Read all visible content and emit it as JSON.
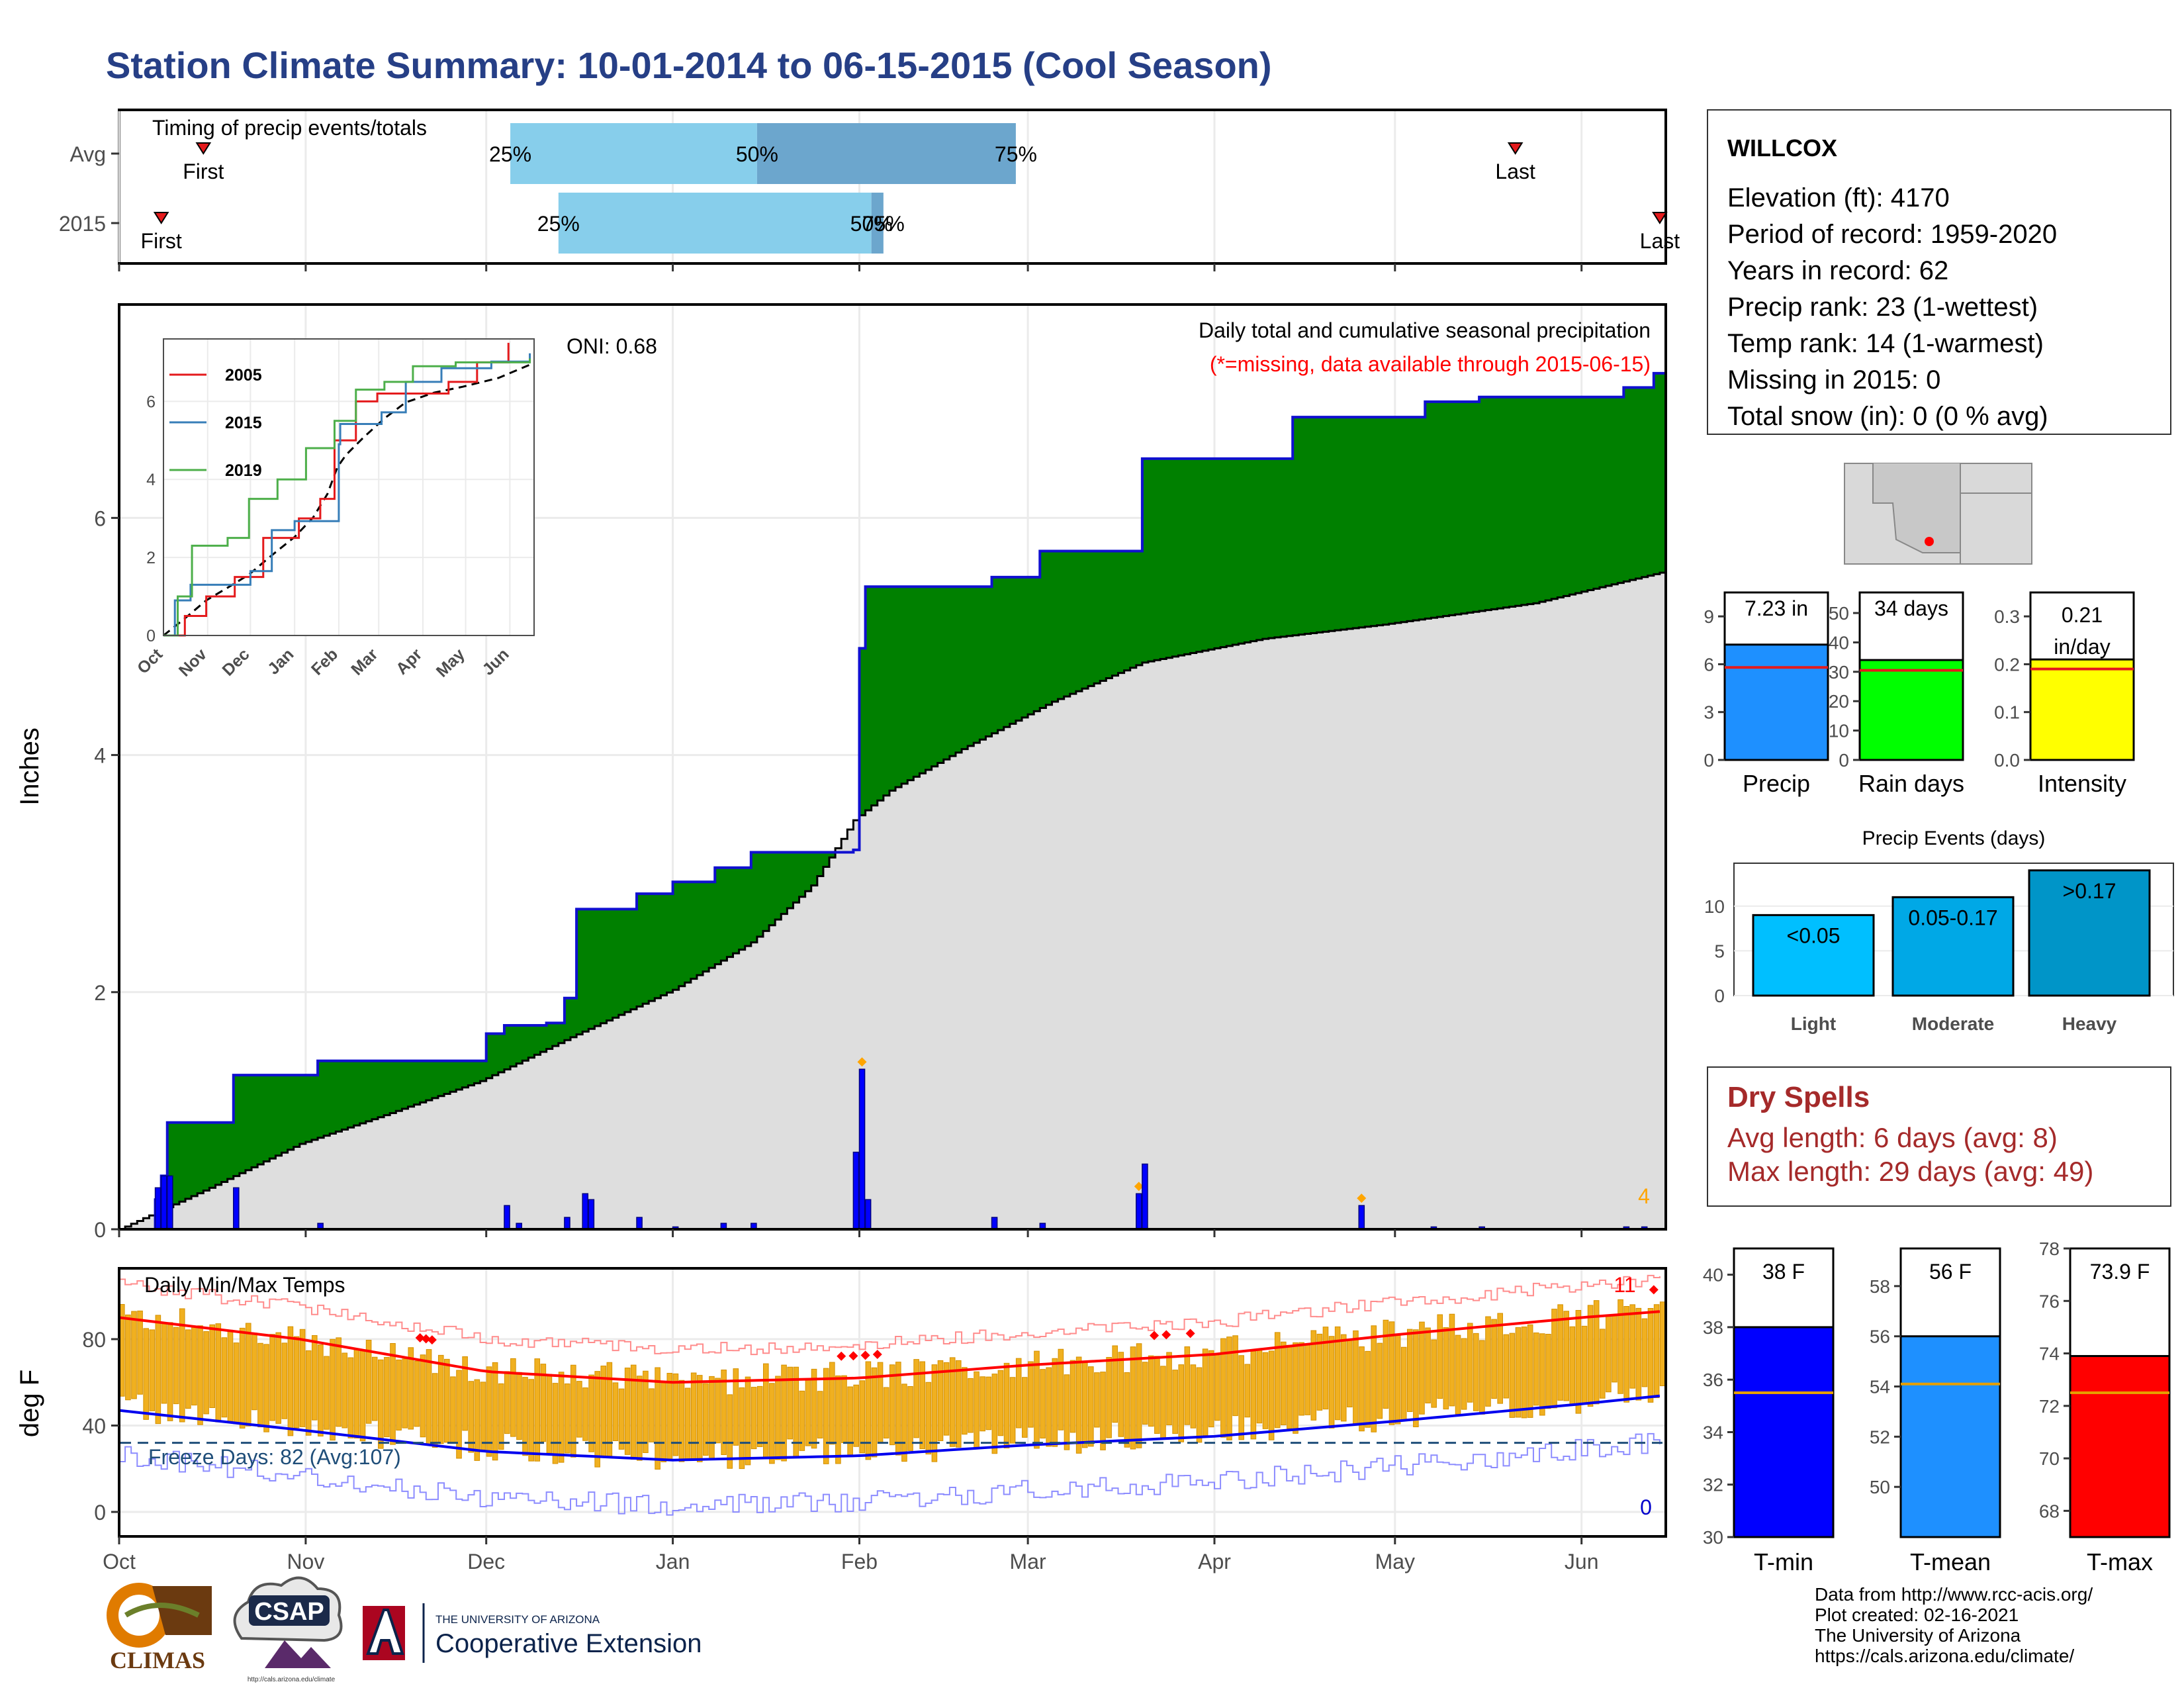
{
  "title": "Station Climate Summary: 10-01-2014 to 06-15-2015 (Cool Season)",
  "timing_panel": {
    "title": "Timing of precip events/totals",
    "rows": [
      {
        "label": "Avg",
        "first_label": "First",
        "last_label": "Last",
        "first_day": 14,
        "last_day": 232,
        "p25": 65,
        "p50": 106,
        "p75": 149,
        "pct_labels": [
          "25%",
          "50%",
          "75%"
        ]
      },
      {
        "label": "2015",
        "first_label": "First",
        "last_label": "Last",
        "first_day": 7,
        "last_day": 256,
        "p25": 73,
        "p50": 125,
        "p75": 127,
        "pct_labels": [
          "25%",
          "50%",
          "75%"
        ]
      }
    ]
  },
  "precip_panel": {
    "ylabel": "Inches",
    "note": "Daily total and cumulative seasonal precipitation",
    "missing_note": "(*=missing, data available through 2015-06-15)",
    "oni": "ONI: 0.68",
    "extreme_count": "4",
    "yticks": [
      "0",
      "2",
      "4",
      "6"
    ],
    "ylim": [
      0,
      7.8
    ]
  },
  "inset": {
    "legend": [
      "2005",
      "2015",
      "2019"
    ],
    "colors": [
      "#e41a1c",
      "#377eb8",
      "#4daf4a"
    ],
    "yticks": [
      "0",
      "2",
      "4",
      "6"
    ],
    "xticks": [
      "Oct",
      "Nov",
      "Dec",
      "Jan",
      "Feb",
      "Mar",
      "Apr",
      "May",
      "Jun"
    ]
  },
  "temp_panel": {
    "title": "Daily Min/Max Temps",
    "ylabel": "deg F",
    "freeze_text": "Freeze Days: 82 (Avg:107)",
    "hot_count": "11",
    "cold_count": "0",
    "yticks": [
      "0",
      "40",
      "80"
    ],
    "xticks": [
      "Oct",
      "Nov",
      "Dec",
      "Jan",
      "Feb",
      "Mar",
      "Apr",
      "May",
      "Jun"
    ]
  },
  "station": {
    "name": "WILLCOX",
    "lines": [
      "Elevation (ft): 4170",
      "Period of record: 1959-2020",
      "Years in record: 62",
      "Precip rank: 23 (1-wettest)",
      "Temp rank: 14 (1-warmest)",
      "Missing in 2015: 0",
      "Total snow (in): 0 (0 % avg)"
    ]
  },
  "summary_bars": [
    {
      "name": "Precip",
      "value_label": "7.23 in",
      "value": 7.23,
      "avg": 5.8,
      "max": 10.5,
      "ticks": [
        "0",
        "3",
        "6",
        "9"
      ],
      "tick_values": [
        0,
        3,
        6,
        9
      ],
      "color": "#1e90ff"
    },
    {
      "name": "Rain days",
      "value_label": "34 days",
      "value": 34,
      "avg": 30.5,
      "max": 57,
      "ticks": [
        "0",
        "10",
        "20",
        "30",
        "40",
        "50"
      ],
      "tick_values": [
        0,
        10,
        20,
        30,
        40,
        50
      ],
      "color": "#00ff00"
    },
    {
      "name": "Intensity",
      "value_label": "0.21 in/day",
      "value": 0.21,
      "avg": 0.19,
      "max": 0.35,
      "ticks": [
        "0.0",
        "0.1",
        "0.2",
        "0.3"
      ],
      "tick_values": [
        0,
        0.1,
        0.2,
        0.3
      ],
      "color": "#ffff00"
    }
  ],
  "events": {
    "title": "Precip Events (days)",
    "categories": [
      "Light",
      "Moderate",
      "Heavy"
    ],
    "range_labels": [
      "<0.05",
      "0.05-0.17",
      ">0.17"
    ],
    "values": [
      9,
      11,
      14
    ],
    "ticks": [
      "0",
      "5",
      "10"
    ],
    "colors": [
      "#00bfff",
      "#00a8e6",
      "#0095c8"
    ]
  },
  "dry_spells": {
    "title": "Dry Spells",
    "avg_line": "Avg length: 6 days (avg: 8)",
    "max_line": "Max length: 29 days (avg: 49)"
  },
  "temp_bars": [
    {
      "name": "T-min",
      "value_label": "38 F",
      "value": 38,
      "avg": 35.5,
      "min": 30,
      "max": 41,
      "ticks": [
        "30",
        "32",
        "34",
        "36",
        "38",
        "40"
      ],
      "tick_values": [
        30,
        32,
        34,
        36,
        38,
        40
      ],
      "color": "#0000ff"
    },
    {
      "name": "T-mean",
      "value_label": "56 F",
      "value": 56,
      "avg": 54.1,
      "min": 48,
      "max": 59.5,
      "ticks": [
        "50",
        "52",
        "54",
        "56",
        "58"
      ],
      "tick_values": [
        50,
        52,
        54,
        56,
        58
      ],
      "color": "#1e90ff"
    },
    {
      "name": "T-max",
      "value_label": "73.9 F",
      "value": 73.9,
      "avg": 72.5,
      "min": 67,
      "max": 78,
      "ticks": [
        "68",
        "70",
        "72",
        "74",
        "76",
        "78"
      ],
      "tick_values": [
        68,
        70,
        72,
        74,
        76,
        78
      ],
      "color": "#ff0000"
    }
  ],
  "footer": [
    "Data from http://www.rcc-acis.org/",
    "Plot created: 02-16-2021",
    "The University of Arizona",
    "https://cals.arizona.edu/climate/"
  ],
  "logos": {
    "climas": "CLIMAS",
    "csap": "CSAP",
    "csap_url": "http://cals.arizona.edu/climate",
    "ua_top": "THE UNIVERSITY OF ARIZONA",
    "ua_bottom": "Cooperative Extension"
  },
  "chart_data": {
    "type": "area",
    "x_axis": "day of season (0 = Oct 1, 2014)",
    "month_labels": [
      "Oct",
      "Nov",
      "Dec",
      "Jan",
      "Feb",
      "Mar",
      "Apr",
      "May",
      "Jun"
    ],
    "month_starts": [
      0,
      31,
      61,
      92,
      123,
      151,
      182,
      212,
      243
    ],
    "season_end_day": 257,
    "cumulative_2015_steps": [
      [
        0,
        0
      ],
      [
        6,
        0.25
      ],
      [
        7,
        0.45
      ],
      [
        8,
        0.9
      ],
      [
        19,
        1.3
      ],
      [
        33,
        1.42
      ],
      [
        59,
        1.42
      ],
      [
        61,
        1.65
      ],
      [
        64,
        1.72
      ],
      [
        71,
        1.74
      ],
      [
        74,
        1.95
      ],
      [
        76,
        2.7
      ],
      [
        86,
        2.83
      ],
      [
        92,
        2.93
      ],
      [
        99,
        3.05
      ],
      [
        105,
        3.18
      ],
      [
        122,
        3.2
      ],
      [
        123,
        4.9
      ],
      [
        124,
        5.42
      ],
      [
        145,
        5.5
      ],
      [
        153,
        5.72
      ],
      [
        170,
        6.5
      ],
      [
        195,
        6.85
      ],
      [
        217,
        6.98
      ],
      [
        226,
        7.02
      ],
      [
        250,
        7.1
      ],
      [
        255,
        7.22
      ],
      [
        257,
        7.23
      ]
    ],
    "cumulative_avg": [
      [
        0,
        0
      ],
      [
        15,
        0.35
      ],
      [
        30,
        0.72
      ],
      [
        45,
        0.98
      ],
      [
        60,
        1.25
      ],
      [
        75,
        1.62
      ],
      [
        92,
        2.02
      ],
      [
        105,
        2.42
      ],
      [
        115,
        2.9
      ],
      [
        122,
        3.45
      ],
      [
        128,
        3.7
      ],
      [
        140,
        4.05
      ],
      [
        155,
        4.45
      ],
      [
        170,
        4.78
      ],
      [
        190,
        4.98
      ],
      [
        210,
        5.1
      ],
      [
        235,
        5.28
      ],
      [
        257,
        5.55
      ]
    ],
    "daily_precip": [
      [
        6,
        0.35
      ],
      [
        7,
        0.45
      ],
      [
        8,
        0.45
      ],
      [
        19,
        0.35
      ],
      [
        33,
        0.05
      ],
      [
        64,
        0.2
      ],
      [
        66,
        0.05
      ],
      [
        74,
        0.1
      ],
      [
        77,
        0.3
      ],
      [
        78,
        0.25
      ],
      [
        86,
        0.1
      ],
      [
        92,
        0.02
      ],
      [
        100,
        0.05
      ],
      [
        105,
        0.05
      ],
      [
        122,
        0.65
      ],
      [
        123,
        1.35
      ],
      [
        124,
        0.25
      ],
      [
        145,
        0.1
      ],
      [
        153,
        0.05
      ],
      [
        169,
        0.3
      ],
      [
        170,
        0.55
      ],
      [
        206,
        0.2
      ],
      [
        218,
        0.02
      ],
      [
        226,
        0.02
      ],
      [
        250,
        0.02
      ],
      [
        253,
        0.02
      ]
    ],
    "inset_series": [
      {
        "name": "2005",
        "points": [
          [
            0,
            0
          ],
          [
            15,
            0.5
          ],
          [
            30,
            1.0
          ],
          [
            50,
            1.5
          ],
          [
            70,
            2.5
          ],
          [
            95,
            3.0
          ],
          [
            110,
            3.5
          ],
          [
            120,
            5.0
          ],
          [
            135,
            6.0
          ],
          [
            150,
            6.2
          ],
          [
            200,
            6.5
          ],
          [
            220,
            7.0
          ],
          [
            242,
            7.5
          ]
        ]
      },
      {
        "name": "2015",
        "points": [
          [
            0,
            0
          ],
          [
            8,
            0.9
          ],
          [
            19,
            1.3
          ],
          [
            61,
            1.65
          ],
          [
            76,
            2.7
          ],
          [
            92,
            2.93
          ],
          [
            123,
            4.9
          ],
          [
            124,
            5.42
          ],
          [
            153,
            5.72
          ],
          [
            170,
            6.5
          ],
          [
            195,
            6.85
          ],
          [
            230,
            7.02
          ],
          [
            257,
            7.23
          ]
        ]
      },
      {
        "name": "2019",
        "points": [
          [
            0,
            0
          ],
          [
            10,
            1.0
          ],
          [
            20,
            2.3
          ],
          [
            45,
            2.5
          ],
          [
            60,
            3.5
          ],
          [
            80,
            4.0
          ],
          [
            100,
            4.8
          ],
          [
            120,
            5.5
          ],
          [
            135,
            6.3
          ],
          [
            155,
            6.5
          ],
          [
            175,
            6.9
          ],
          [
            205,
            7.0
          ],
          [
            257,
            7.1
          ]
        ]
      }
    ],
    "temp_normals": {
      "tmax_avg": [
        [
          0,
          90
        ],
        [
          30,
          80
        ],
        [
          61,
          65
        ],
        [
          92,
          60
        ],
        [
          123,
          62
        ],
        [
          151,
          68
        ],
        [
          182,
          73
        ],
        [
          212,
          82
        ],
        [
          243,
          90
        ],
        [
          257,
          93
        ]
      ],
      "tmin_avg": [
        [
          0,
          47
        ],
        [
          30,
          38
        ],
        [
          61,
          28
        ],
        [
          92,
          24
        ],
        [
          123,
          26
        ],
        [
          151,
          31
        ],
        [
          182,
          35
        ],
        [
          212,
          42
        ],
        [
          243,
          50
        ],
        [
          257,
          54
        ]
      ],
      "freeze_line": 32
    }
  }
}
